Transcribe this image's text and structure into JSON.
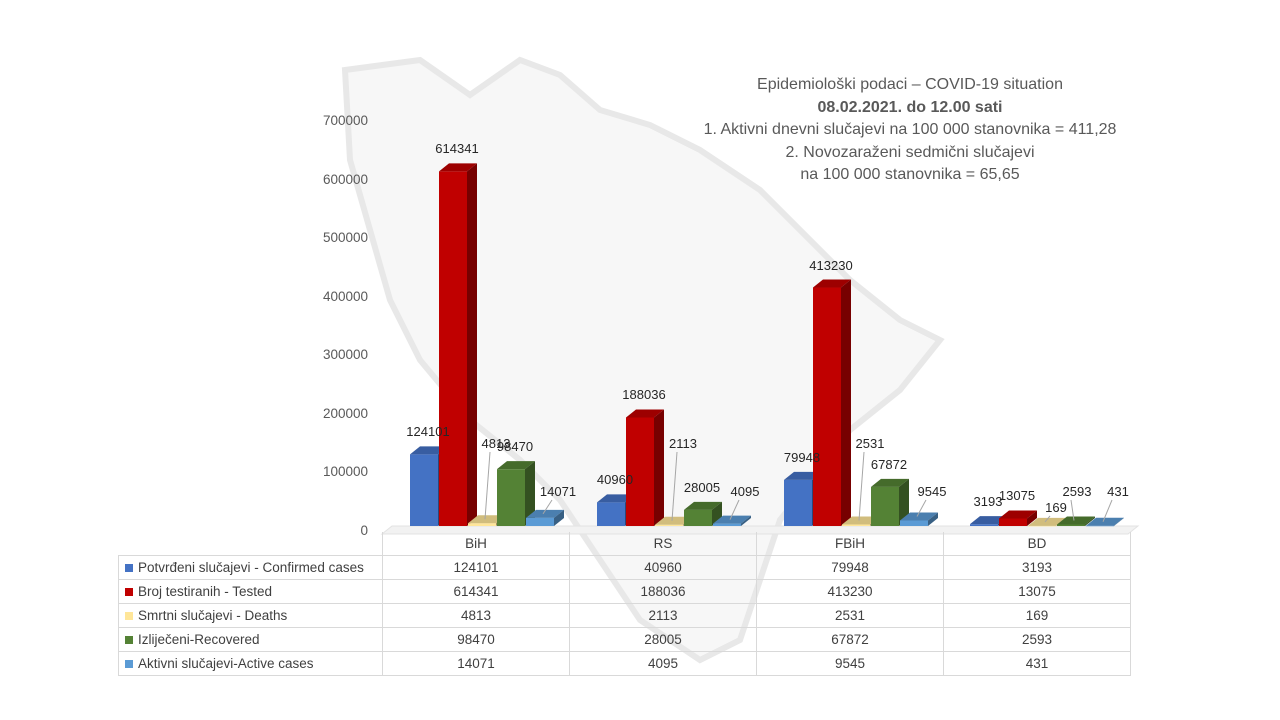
{
  "title": {
    "line1": "Epidemiološki podaci – COVID-19 situation",
    "line2": "08.02.2021. do 12.00 sati",
    "line3": "1. Aktivni dnevni slučajevi na 100 000 stanovnika = 411,28",
    "line4": "2. Novozaraženi sedmični slučajevi",
    "line5": "na 100 000 stanovnika = 65,65"
  },
  "chart_data": {
    "type": "bar",
    "style": "3d-clustered-column",
    "categories": [
      "BiH",
      "RS",
      "FBiH",
      "BD"
    ],
    "ylim": [
      0,
      700000
    ],
    "yticks": [
      "0",
      "100000",
      "200000",
      "300000",
      "400000",
      "500000",
      "600000",
      "700000"
    ],
    "series": [
      {
        "name": "Potvrđeni slučajevi - Confirmed cases",
        "color": "#4472c4",
        "values": [
          124101,
          40960,
          79948,
          3193
        ]
      },
      {
        "name": "Broj testiranih - Tested",
        "color": "#c00000",
        "values": [
          614341,
          188036,
          413230,
          13075
        ]
      },
      {
        "name": "Smrtni slučajevi - Deaths",
        "color": "#ffe699",
        "values": [
          4813,
          2113,
          2531,
          169
        ]
      },
      {
        "name": "Izliječeni-Recovered",
        "color": "#548235",
        "values": [
          98470,
          28005,
          67872,
          2593
        ]
      },
      {
        "name": "Aktivni slučajevi-Active cases",
        "color": "#5b9bd5",
        "values": [
          14071,
          4095,
          9545,
          431
        ]
      }
    ],
    "data_labels": true,
    "legend": "data-table-below",
    "grid": false
  }
}
